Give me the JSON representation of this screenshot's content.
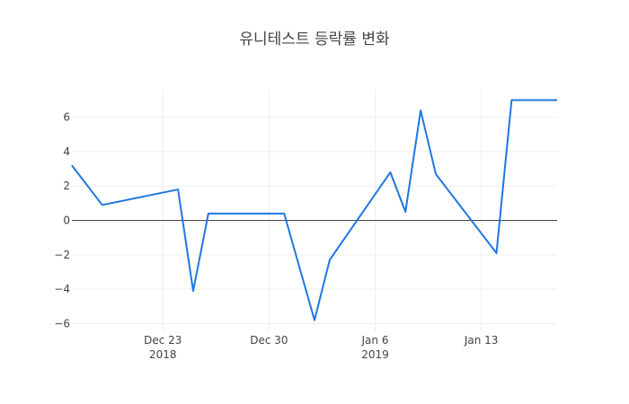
{
  "chart_data": {
    "type": "line",
    "title": "유니테스트 등락률 변화",
    "xlabel": "",
    "ylabel": "",
    "grid": true,
    "x_type": "date",
    "xlim": [
      "2018-12-17",
      "2019-01-18"
    ],
    "ylim": [
      -6.5,
      7.6
    ],
    "x_ticks": [
      {
        "value": "2018-12-23",
        "label": "Dec 23",
        "sublabel": "2018"
      },
      {
        "value": "2018-12-30",
        "label": "Dec 30",
        "sublabel": ""
      },
      {
        "value": "2019-01-06",
        "label": "Jan 6",
        "sublabel": "2019"
      },
      {
        "value": "2019-01-13",
        "label": "Jan 13",
        "sublabel": ""
      }
    ],
    "y_ticks": [
      {
        "value": -6,
        "label": "−6"
      },
      {
        "value": -4,
        "label": "−4"
      },
      {
        "value": -2,
        "label": "−2"
      },
      {
        "value": 0,
        "label": "0"
      },
      {
        "value": 2,
        "label": "2"
      },
      {
        "value": 4,
        "label": "4"
      },
      {
        "value": 6,
        "label": "6"
      }
    ],
    "series": [
      {
        "color": "#1f77e0",
        "x": [
          "2018-12-17",
          "2018-12-19",
          "2018-12-24",
          "2018-12-25",
          "2018-12-26",
          "2018-12-31",
          "2019-01-02",
          "2019-01-03",
          "2019-01-07",
          "2019-01-08",
          "2019-01-09",
          "2019-01-10",
          "2019-01-14",
          "2019-01-15",
          "2019-01-16",
          "2019-01-17",
          "2019-01-18"
        ],
        "y": [
          3.2,
          0.9,
          1.8,
          -4.1,
          0.4,
          0.4,
          -5.8,
          -2.3,
          2.8,
          0.5,
          6.4,
          2.7,
          -1.9,
          7.0,
          7.0,
          7.0,
          7.0
        ]
      }
    ]
  }
}
